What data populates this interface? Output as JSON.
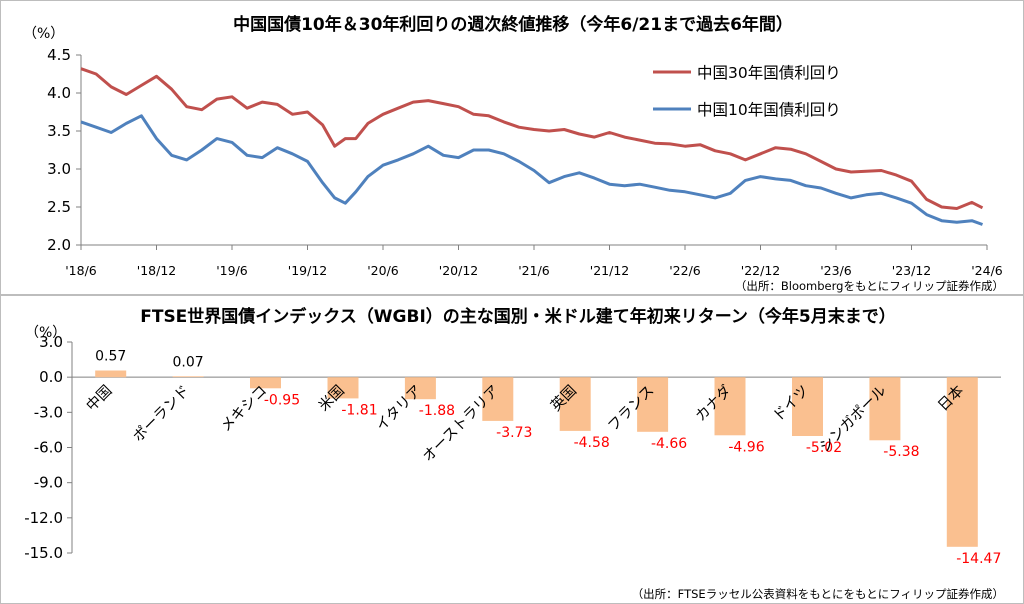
{
  "top_chart": {
    "title": "中国国債10年＆30年利回りの週次終値推移（今年6/21まで過去6年間）",
    "unit": "（%）",
    "source": "（出所：Bloombergをもとにフィリップ証券作成）",
    "colors": {
      "cn30y": "#c0504d",
      "cn10y": "#4f81bd"
    }
  },
  "bottom_chart": {
    "title": "FTSE世界国債インデックス（WGBI）の主な国別・米ドル建て年初来リターン（今年5月末まで）",
    "unit": "（%）",
    "source": "（出所：FTSEラッセル公表資料をもとにをもとにフィリップ証券作成）",
    "colors": {
      "bar": "#fac090",
      "positive_label": "#000000",
      "negative_label": "#ff0000"
    }
  },
  "chart_data": [
    {
      "type": "line",
      "title": "中国国債10年＆30年利回りの週次終値推移（今年6/21まで過去6年間）",
      "ylabel": "（%）",
      "ylim": [
        2.0,
        4.5
      ],
      "yticks": [
        "4.5",
        "4.0",
        "3.5",
        "3.0",
        "2.5",
        "2.0"
      ],
      "grid": false,
      "legend": "top-right",
      "xticks": [
        "'18/6",
        "'18/12",
        "'19/6",
        "'19/12",
        "'20/6",
        "'20/12",
        "'21/6",
        "'21/12",
        "'22/6",
        "'22/12",
        "'23/6",
        "'23/12",
        "'24/6"
      ],
      "x_start": "2018-06",
      "x_end": "2024-06-21",
      "series": [
        {
          "name": "中国30年国債利回り",
          "x": [
            2018.5,
            2018.6,
            2018.7,
            2018.8,
            2018.9,
            2019.0,
            2019.1,
            2019.2,
            2019.3,
            2019.4,
            2019.5,
            2019.6,
            2019.7,
            2019.8,
            2019.9,
            2020.0,
            2020.1,
            2020.18,
            2020.25,
            2020.32,
            2020.4,
            2020.5,
            2020.6,
            2020.7,
            2020.8,
            2020.9,
            2021.0,
            2021.1,
            2021.2,
            2021.3,
            2021.4,
            2021.5,
            2021.6,
            2021.7,
            2021.8,
            2021.9,
            2022.0,
            2022.1,
            2022.2,
            2022.3,
            2022.4,
            2022.5,
            2022.6,
            2022.7,
            2022.8,
            2022.9,
            2023.0,
            2023.1,
            2023.2,
            2023.3,
            2023.4,
            2023.5,
            2023.6,
            2023.7,
            2023.8,
            2023.9,
            2024.0,
            2024.1,
            2024.2,
            2024.3,
            2024.4,
            2024.47
          ],
          "values": [
            4.32,
            4.25,
            4.08,
            3.98,
            4.1,
            4.22,
            4.05,
            3.82,
            3.78,
            3.92,
            3.95,
            3.8,
            3.88,
            3.85,
            3.72,
            3.75,
            3.58,
            3.3,
            3.4,
            3.4,
            3.6,
            3.72,
            3.8,
            3.88,
            3.9,
            3.86,
            3.82,
            3.72,
            3.7,
            3.62,
            3.55,
            3.52,
            3.5,
            3.52,
            3.46,
            3.42,
            3.48,
            3.42,
            3.38,
            3.34,
            3.33,
            3.3,
            3.32,
            3.24,
            3.2,
            3.12,
            3.2,
            3.28,
            3.26,
            3.2,
            3.1,
            3.0,
            2.96,
            2.97,
            2.98,
            2.92,
            2.84,
            2.6,
            2.5,
            2.48,
            2.56,
            2.49
          ]
        },
        {
          "name": "中国10年国債利回り",
          "x": [
            2018.5,
            2018.6,
            2018.7,
            2018.8,
            2018.9,
            2019.0,
            2019.1,
            2019.2,
            2019.3,
            2019.4,
            2019.5,
            2019.6,
            2019.7,
            2019.8,
            2019.9,
            2020.0,
            2020.1,
            2020.18,
            2020.25,
            2020.32,
            2020.4,
            2020.5,
            2020.6,
            2020.7,
            2020.8,
            2020.9,
            2021.0,
            2021.1,
            2021.2,
            2021.3,
            2021.4,
            2021.5,
            2021.6,
            2021.7,
            2021.8,
            2021.9,
            2022.0,
            2022.1,
            2022.2,
            2022.3,
            2022.4,
            2022.5,
            2022.6,
            2022.7,
            2022.8,
            2022.9,
            2023.0,
            2023.1,
            2023.2,
            2023.3,
            2023.4,
            2023.5,
            2023.6,
            2023.7,
            2023.8,
            2023.9,
            2024.0,
            2024.1,
            2024.2,
            2024.3,
            2024.4,
            2024.47
          ],
          "values": [
            3.62,
            3.55,
            3.48,
            3.6,
            3.7,
            3.4,
            3.18,
            3.12,
            3.25,
            3.4,
            3.35,
            3.18,
            3.15,
            3.28,
            3.2,
            3.1,
            2.82,
            2.62,
            2.55,
            2.7,
            2.9,
            3.05,
            3.12,
            3.2,
            3.3,
            3.18,
            3.15,
            3.25,
            3.25,
            3.2,
            3.1,
            2.98,
            2.82,
            2.9,
            2.95,
            2.88,
            2.8,
            2.78,
            2.8,
            2.76,
            2.72,
            2.7,
            2.66,
            2.62,
            2.68,
            2.85,
            2.9,
            2.87,
            2.85,
            2.78,
            2.75,
            2.68,
            2.62,
            2.66,
            2.68,
            2.62,
            2.55,
            2.4,
            2.32,
            2.3,
            2.32,
            2.27
          ]
        }
      ]
    },
    {
      "type": "bar",
      "title": "FTSE世界国債インデックス（WGBI）の主な国別・米ドル建て年初来リターン（今年5月末まで）",
      "ylabel": "（%）",
      "ylim": [
        -15.0,
        3.0
      ],
      "yticks": [
        "3.0",
        "0.0",
        "-3.0",
        "-6.0",
        "-9.0",
        "-12.0",
        "-15.0"
      ],
      "grid": false,
      "categories": [
        "中国",
        "ポーランド",
        "メキシコ",
        "米国",
        "イタリア",
        "オーストラリア",
        "英国",
        "フランス",
        "カナダ",
        "ドイツ",
        "シンガポール",
        "日本"
      ],
      "values": [
        0.57,
        0.07,
        -0.95,
        -1.81,
        -1.88,
        -3.73,
        -4.58,
        -4.66,
        -4.96,
        -5.02,
        -5.38,
        -14.47
      ],
      "data_labels": [
        "0.57",
        "0.07",
        "-0.95",
        "-1.81",
        "-1.88",
        "-3.73",
        "-4.58",
        "-4.66",
        "-4.96",
        "-5.02",
        "-5.38",
        "-14.47"
      ]
    }
  ]
}
